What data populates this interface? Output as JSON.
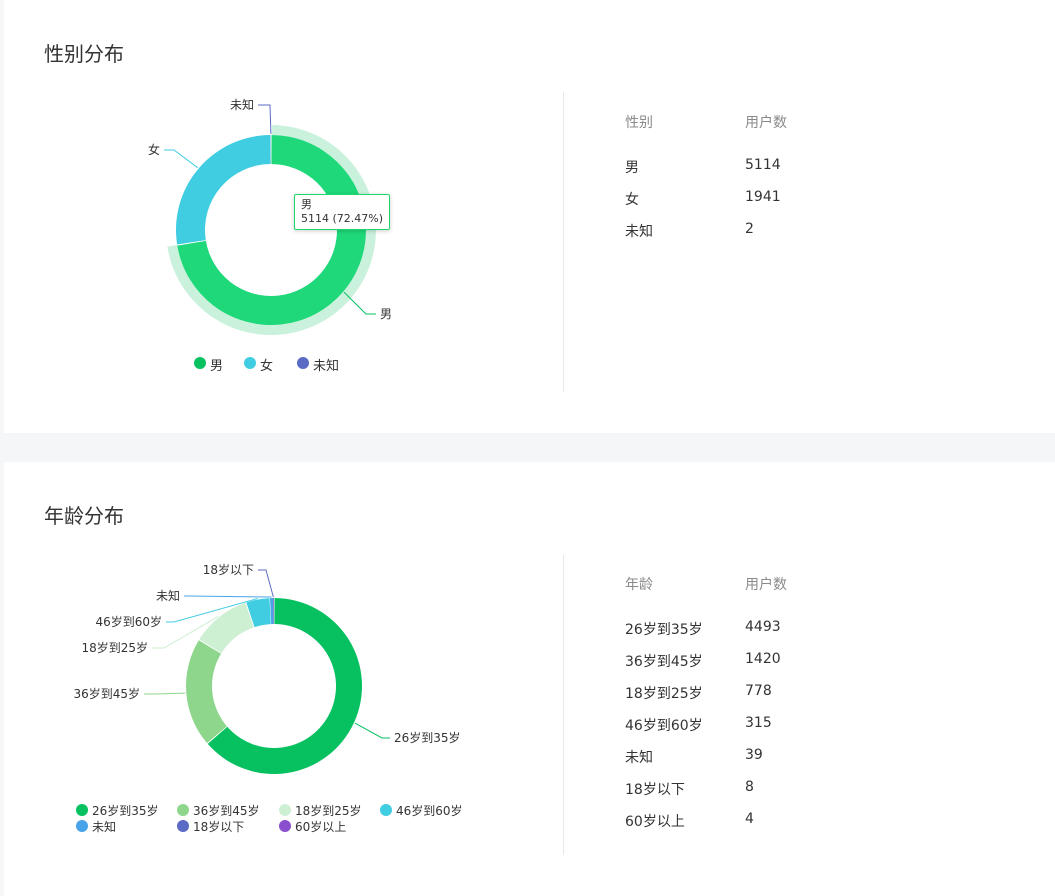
{
  "sections": {
    "gender": {
      "title": "性别分布",
      "table_headers": [
        "性别",
        "用户数"
      ],
      "tooltip": {
        "label": "男",
        "value": "5114 (72.47%)"
      }
    },
    "age": {
      "title": "年龄分布",
      "table_headers": [
        "年龄",
        "用户数"
      ]
    }
  },
  "chart_data": [
    {
      "type": "pie",
      "title": "性别分布",
      "donut": true,
      "legend_position": "bottom",
      "highlighted": "男",
      "slices": [
        {
          "name": "男",
          "value": 5114,
          "color": "#07c160"
        },
        {
          "name": "女",
          "value": 1941,
          "color": "#40cde2"
        },
        {
          "name": "未知",
          "value": 2,
          "color": "#5b6ac4"
        }
      ]
    },
    {
      "type": "pie",
      "title": "年龄分布",
      "donut": true,
      "legend_position": "bottom",
      "slices": [
        {
          "name": "26岁到35岁",
          "value": 4493,
          "color": "#07c160"
        },
        {
          "name": "36岁到45岁",
          "value": 1420,
          "color": "#8ed68c"
        },
        {
          "name": "18岁到25岁",
          "value": 778,
          "color": "#cdefd2"
        },
        {
          "name": "46岁到60岁",
          "value": 315,
          "color": "#40cde2"
        },
        {
          "name": "未知",
          "value": 39,
          "color": "#48a3e8"
        },
        {
          "name": "18岁以下",
          "value": 8,
          "color": "#5b6ac4"
        },
        {
          "name": "60岁以上",
          "value": 4,
          "color": "#8a4fcc"
        }
      ]
    }
  ]
}
